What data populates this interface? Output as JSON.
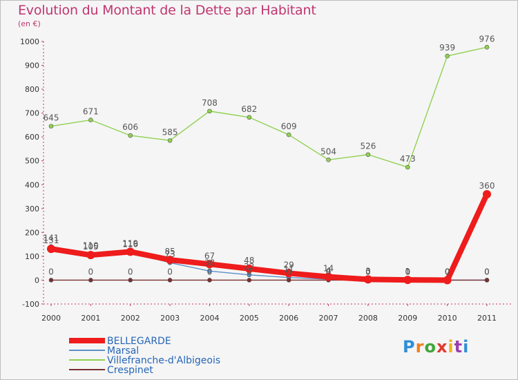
{
  "header": {
    "title": "Evolution du Montant de la Dette par Habitant",
    "unit": "(en €)"
  },
  "logo": {
    "text": "Proxiti",
    "colors": [
      "#2f8fd8",
      "#f07f1f",
      "#40a63a",
      "#e23a2f",
      "#f2b01e",
      "#9b3fae",
      "#2f8fd8"
    ]
  },
  "chart_data": {
    "type": "line",
    "title": "Evolution du Montant de la Dette par Habitant",
    "ylabel": "(en €)",
    "xlabel": "",
    "ylim": [
      -100,
      1000
    ],
    "yticks": [
      -100,
      0,
      100,
      200,
      300,
      400,
      500,
      600,
      700,
      800,
      900,
      1000
    ],
    "grid": false,
    "legend_position": "bottom-left",
    "x": [
      "2000",
      "2001",
      "2002",
      "2003",
      "2004",
      "2005",
      "2006",
      "2007",
      "2008",
      "2009",
      "2010",
      "2011"
    ],
    "series": [
      {
        "name": "Villefranche-d'Albigeois",
        "color": "#8fd14f",
        "values": [
          645,
          671,
          606,
          585,
          708,
          682,
          609,
          504,
          526,
          473,
          939,
          976
        ],
        "labels": [
          "645",
          "671",
          "606",
          "585",
          "708",
          "682",
          "609",
          "504",
          "526",
          "473",
          "939",
          "976"
        ]
      },
      {
        "name": "Marsal",
        "color": "#5b8fc8",
        "values": [
          141,
          110,
          116,
          73,
          38,
          22,
          11,
          4,
          0,
          0,
          0,
          0
        ],
        "labels": [
          "141",
          "110",
          "116",
          "73",
          "38",
          "22",
          "11",
          "4",
          "0",
          "0",
          "0",
          "0"
        ]
      },
      {
        "name": "Crespinet",
        "color": "#7a2f2f",
        "values": [
          0,
          0,
          0,
          0,
          0,
          0,
          0,
          0,
          0,
          0,
          0,
          0
        ],
        "labels": [
          "0",
          "0",
          "0",
          "0",
          "0",
          "0",
          "0",
          "0",
          "0",
          "0",
          "0",
          "0"
        ]
      },
      {
        "name": "BELLEGARDE",
        "color": "#ee1c1c",
        "values": [
          131,
          105,
          119,
          85,
          67,
          48,
          29,
          14,
          3,
          1,
          0,
          360
        ],
        "labels": [
          "131",
          "105",
          "119",
          "85",
          "67",
          "48",
          "29",
          "14",
          "3",
          "1",
          "0",
          "360"
        ]
      }
    ]
  },
  "legend": [
    {
      "name": "BELLEGARDE",
      "color": "#ee1c1c"
    },
    {
      "name": "Marsal",
      "color": "#5b8fc8"
    },
    {
      "name": "Villefranche-d'Albigeois",
      "color": "#8fd14f"
    },
    {
      "name": "Crespinet",
      "color": "#7a2f2f"
    }
  ]
}
